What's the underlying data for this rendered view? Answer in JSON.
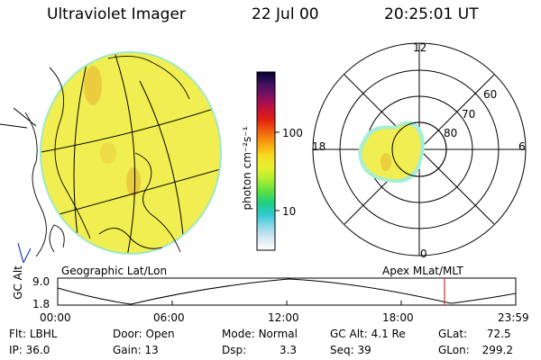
{
  "header": {
    "instrument": "Ultraviolet Imager",
    "date": "22 Jul 00",
    "time": "20:25:01 UT"
  },
  "colorbar": {
    "unit_label": "photon cm⁻²s⁻¹",
    "tick_100": "100",
    "tick_10": "10",
    "colors": [
      "#ffffff",
      "#d8e8ee",
      "#8fd8e8",
      "#30c8d0",
      "#20d080",
      "#60e040",
      "#b0ee30",
      "#e8f030",
      "#f8d820",
      "#f8a010",
      "#f06010",
      "#e02010",
      "#c01040",
      "#801060",
      "#401060",
      "#000030"
    ]
  },
  "left_panel": {
    "label": "Geographic Lat/Lon",
    "fill_color": "#f0ee50"
  },
  "right_panel": {
    "label": "Apex MLat/MLT",
    "mlt_top": "12",
    "mlt_left": "18",
    "mlt_right": "6",
    "mlt_bottom": "0",
    "lat_60": "60",
    "lat_70": "70",
    "lat_80": "80"
  },
  "alt_plot": {
    "ylabel": "GC Alt",
    "ymax": "9.0",
    "ymin": "1.8",
    "xticks": [
      "00:00",
      "06:00",
      "12:00",
      "18:00",
      "23:59"
    ],
    "marker_color": "#d03030"
  },
  "footer": {
    "flt_label": "Flt:",
    "flt_value": "LBHL",
    "ip_label": "IP:",
    "ip_value": "36.0",
    "door_label": "Door:",
    "door_value": "Open",
    "gain_label": "Gain:",
    "gain_value": "13",
    "mode_label": "Mode:",
    "mode_value": "Normal",
    "dsp_label": "Dsp:",
    "dsp_value": "3.3",
    "gcalt_label": "GC Alt:",
    "gcalt_value": "4.1 Re",
    "seq_label": "Seq:",
    "seq_value": "39",
    "glat_label": "GLat:",
    "glat_value": "72.5",
    "glon_label": "GLon:",
    "glon_value": "299.2"
  }
}
